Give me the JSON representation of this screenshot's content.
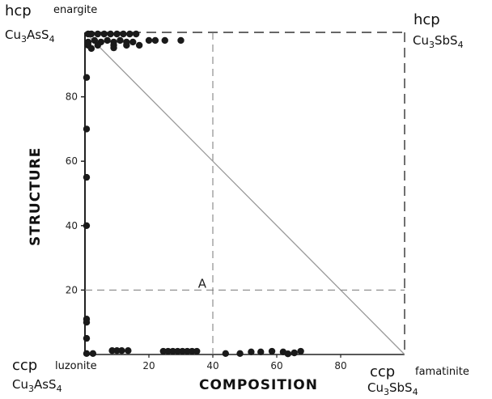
{
  "chart_data": {
    "type": "scatter",
    "xlabel": "COMPOSITION",
    "ylabel": "STRUCTURE",
    "xlim": [
      0,
      100
    ],
    "ylim": [
      0,
      100
    ],
    "x_ticks": [
      "20",
      "40",
      "60",
      "80"
    ],
    "y_ticks": [
      "20",
      "40",
      "60",
      "80"
    ],
    "corners": {
      "top_left": {
        "structure": "hcp",
        "mineral": "enargite",
        "formula_main": "Cu",
        "formula_sub1": "3",
        "formula_mid": "AsS",
        "formula_sub2": "4"
      },
      "top_right": {
        "structure": "hcp",
        "formula_main": "Cu",
        "formula_sub1": "3",
        "formula_mid": "SbS",
        "formula_sub2": "4"
      },
      "bottom_left": {
        "structure": "ccp",
        "mineral": "luzonite",
        "formula_main": "Cu",
        "formula_sub1": "3",
        "formula_mid": "AsS",
        "formula_sub2": "4"
      },
      "bottom_right": {
        "structure": "ccp",
        "mineral": "famatinite",
        "formula_main": "Cu",
        "formula_sub1": "3",
        "formula_mid": "SbS",
        "formula_sub2": "4"
      }
    },
    "annotation": {
      "text": "A",
      "x": 40,
      "y": 20
    },
    "tie_line": {
      "from": [
        0,
        100
      ],
      "to": [
        100,
        0
      ]
    },
    "reference_lines": {
      "x": 40,
      "y": 20
    },
    "points": [
      [
        1,
        99.5
      ],
      [
        2,
        99.5
      ],
      [
        4,
        99.5
      ],
      [
        6,
        99.5
      ],
      [
        8,
        99.5
      ],
      [
        10,
        99.5
      ],
      [
        12,
        99.5
      ],
      [
        14,
        99.5
      ],
      [
        16,
        99.5
      ],
      [
        1,
        97
      ],
      [
        3,
        97.5
      ],
      [
        5,
        97
      ],
      [
        7,
        97.5
      ],
      [
        9,
        97
      ],
      [
        11,
        97.5
      ],
      [
        13,
        97
      ],
      [
        15,
        97
      ],
      [
        1,
        96
      ],
      [
        4,
        96
      ],
      [
        9,
        96
      ],
      [
        13,
        96
      ],
      [
        17,
        96
      ],
      [
        2,
        95
      ],
      [
        9,
        95.2
      ],
      [
        20,
        97.5
      ],
      [
        22,
        97.5
      ],
      [
        25,
        97.5
      ],
      [
        30,
        97.5
      ],
      [
        0.5,
        86
      ],
      [
        0.5,
        70
      ],
      [
        0.5,
        55
      ],
      [
        0.5,
        40
      ],
      [
        0.5,
        11
      ],
      [
        0.5,
        10
      ],
      [
        0.5,
        5
      ],
      [
        0.5,
        0.3
      ],
      [
        2.5,
        0.3
      ],
      [
        8.5,
        1.2
      ],
      [
        10,
        1.2
      ],
      [
        11.5,
        1.2
      ],
      [
        13.5,
        1.2
      ],
      [
        24.5,
        1
      ],
      [
        26,
        1
      ],
      [
        27.5,
        1
      ],
      [
        29,
        1
      ],
      [
        30.5,
        1
      ],
      [
        32,
        1
      ],
      [
        33.5,
        1
      ],
      [
        35,
        1
      ],
      [
        44,
        0.3
      ],
      [
        48.5,
        0.3
      ],
      [
        52,
        0.8
      ],
      [
        55,
        0.8
      ],
      [
        58.5,
        1
      ],
      [
        62,
        0.8
      ],
      [
        63.5,
        0.2
      ],
      [
        65.5,
        0.5
      ],
      [
        67.5,
        1
      ]
    ]
  }
}
